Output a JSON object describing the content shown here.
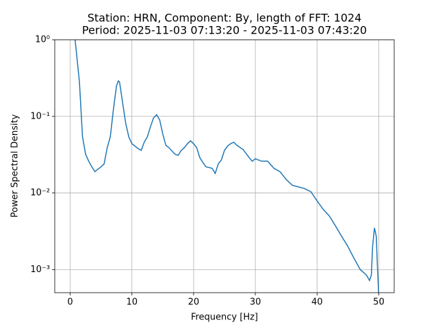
{
  "chart_data": {
    "type": "line",
    "title": [
      "Station: HRN, Component: By, length of FFT: 1024",
      "Period: 2025-11-03 07:13:20 - 2025-11-03 07:43:20"
    ],
    "xlabel": "Frequency [Hz]",
    "ylabel": "Power Spectral Density",
    "x": [
      0.7,
      0.8,
      1.5,
      2,
      2.5,
      3,
      3.5,
      4,
      5,
      5.5,
      6,
      6.5,
      7,
      7.5,
      7.8,
      8,
      8.5,
      9,
      9.5,
      10,
      11,
      11.5,
      12,
      12.5,
      13,
      13.5,
      14,
      14.5,
      15,
      15.5,
      16,
      17,
      17.5,
      18,
      18.5,
      19,
      19.5,
      20,
      20.5,
      21,
      21.5,
      22,
      23,
      23.5,
      24,
      24.5,
      25,
      25.5,
      26,
      26.5,
      27,
      28,
      29,
      29.5,
      30,
      31,
      32,
      33,
      34,
      35,
      36,
      37,
      38,
      39,
      40,
      41,
      42,
      43,
      44,
      45,
      46,
      47,
      48,
      48.5,
      48.8,
      49,
      49.3,
      49.6,
      49.8,
      50
    ],
    "series": [
      {
        "name": "PSD",
        "color": "#1f77b4",
        "values": [
          1.3,
          1.0,
          0.28,
          0.054,
          0.032,
          0.026,
          0.022,
          0.019,
          0.022,
          0.024,
          0.039,
          0.054,
          0.122,
          0.25,
          0.29,
          0.28,
          0.15,
          0.081,
          0.054,
          0.044,
          0.038,
          0.036,
          0.046,
          0.054,
          0.073,
          0.095,
          0.105,
          0.09,
          0.059,
          0.042,
          0.039,
          0.032,
          0.031,
          0.036,
          0.039,
          0.044,
          0.048,
          0.044,
          0.039,
          0.029,
          0.025,
          0.022,
          0.021,
          0.018,
          0.024,
          0.027,
          0.036,
          0.041,
          0.044,
          0.046,
          0.042,
          0.037,
          0.029,
          0.026,
          0.028,
          0.026,
          0.026,
          0.021,
          0.019,
          0.015,
          0.0126,
          0.012,
          0.0114,
          0.0104,
          0.0079,
          0.0061,
          0.005,
          0.0037,
          0.0027,
          0.002,
          0.0014,
          0.001,
          0.00085,
          0.00072,
          0.00085,
          0.002,
          0.0035,
          0.0027,
          0.001,
          0.00046
        ]
      }
    ],
    "xlim": [
      -2.5,
      52.5
    ],
    "xticks": [
      0,
      10,
      20,
      30,
      40,
      50
    ],
    "ylim": [
      0.0005,
      1
    ],
    "yscale": "log",
    "yticks": [
      {
        "value": 0.001,
        "label": "10⁻³"
      },
      {
        "value": 0.01,
        "label": "10⁻²"
      },
      {
        "value": 0.1,
        "label": "10⁻¹"
      },
      {
        "value": 1,
        "label": "10⁰"
      }
    ],
    "grid": true
  }
}
